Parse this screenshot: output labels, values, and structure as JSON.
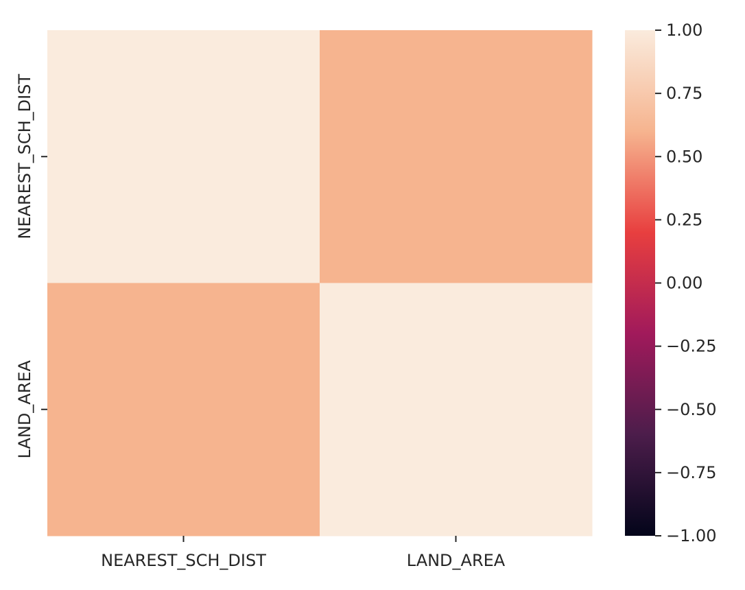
{
  "chart_data": {
    "type": "heatmap",
    "title": "",
    "xlabel": "",
    "ylabel": "",
    "x_categories": [
      "NEAREST_SCH_DIST",
      "LAND_AREA"
    ],
    "y_categories": [
      "NEAREST_SCH_DIST",
      "LAND_AREA"
    ],
    "matrix": [
      [
        1.0,
        0.6
      ],
      [
        0.6,
        1.0
      ]
    ],
    "colorbar": {
      "range": [
        -1.0,
        1.0
      ],
      "ticks": [
        1.0,
        0.75,
        0.5,
        0.25,
        0.0,
        -0.25,
        -0.5,
        -0.75,
        -1.0
      ],
      "tick_labels": [
        "1.00",
        "0.75",
        "0.50",
        "0.25",
        "0.00",
        "−0.25",
        "−0.50",
        "−0.75",
        "−1.00"
      ],
      "colormap": "rocket",
      "stops": [
        "#03051a",
        "#4c1d4b",
        "#a11a5b",
        "#e83f3f",
        "#f6b48f",
        "#faebdd"
      ]
    },
    "grid": false,
    "legend": "colorbar-right"
  }
}
